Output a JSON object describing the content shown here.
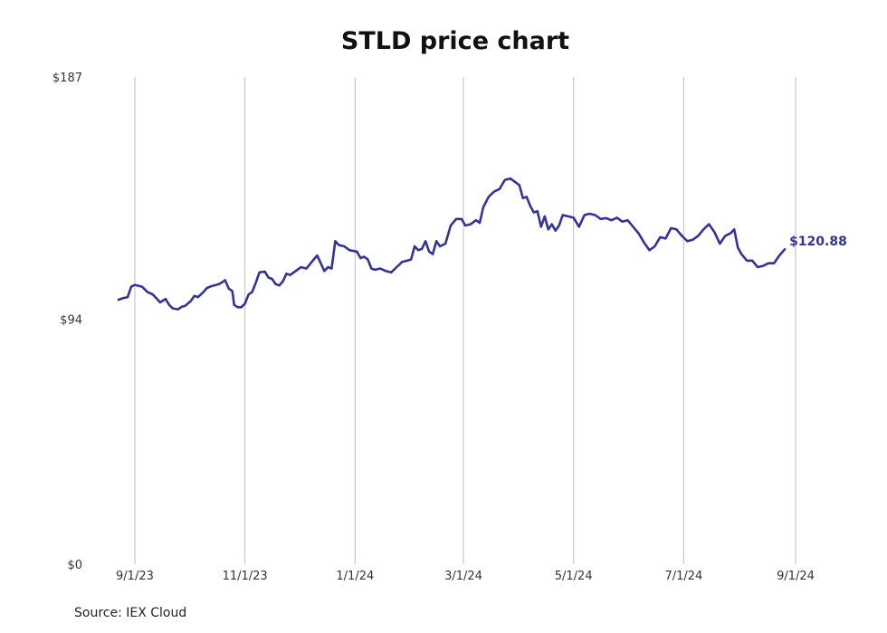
{
  "chart_data": {
    "type": "line",
    "title": "STLD price chart",
    "source": "Source: IEX Cloud",
    "ylim": [
      0,
      187
    ],
    "y_ticks": [
      {
        "value": 0,
        "label": "$0"
      },
      {
        "value": 94,
        "label": "$94"
      },
      {
        "value": 187,
        "label": "$187"
      }
    ],
    "x_range": [
      "2023-08-24",
      "2024-09-08"
    ],
    "x_ticks": [
      {
        "date": "2023-09-01",
        "label": "9/1/23"
      },
      {
        "date": "2023-11-01",
        "label": "11/1/23"
      },
      {
        "date": "2024-01-01",
        "label": "1/1/24"
      },
      {
        "date": "2024-03-01",
        "label": "3/1/24"
      },
      {
        "date": "2024-05-01",
        "label": "5/1/24"
      },
      {
        "date": "2024-07-01",
        "label": "7/1/24"
      },
      {
        "date": "2024-09-01",
        "label": "9/1/24"
      }
    ],
    "grid": "vertical",
    "series": [
      {
        "color": "#333399",
        "last_value_label": "$120.88",
        "points": [
          [
            "2023-08-23",
            101.5
          ],
          [
            "2023-08-25",
            102.0
          ],
          [
            "2023-08-28",
            102.5
          ],
          [
            "2023-08-30",
            106.5
          ],
          [
            "2023-09-01",
            107.2
          ],
          [
            "2023-09-05",
            106.5
          ],
          [
            "2023-09-08",
            104.5
          ],
          [
            "2023-09-11",
            103.5
          ],
          [
            "2023-09-13",
            102.0
          ],
          [
            "2023-09-15",
            100.5
          ],
          [
            "2023-09-18",
            101.8
          ],
          [
            "2023-09-20",
            99.5
          ],
          [
            "2023-09-22",
            98.2
          ],
          [
            "2023-09-25",
            97.8
          ],
          [
            "2023-09-27",
            98.8
          ],
          [
            "2023-09-29",
            99.2
          ],
          [
            "2023-10-02",
            101.0
          ],
          [
            "2023-10-04",
            103.0
          ],
          [
            "2023-10-06",
            102.5
          ],
          [
            "2023-10-09",
            104.5
          ],
          [
            "2023-10-11",
            106.0
          ],
          [
            "2023-10-13",
            106.6
          ],
          [
            "2023-10-16",
            107.2
          ],
          [
            "2023-10-18",
            107.6
          ],
          [
            "2023-10-20",
            108.5
          ],
          [
            "2023-10-21",
            109.0
          ],
          [
            "2023-10-23",
            105.8
          ],
          [
            "2023-10-25",
            104.8
          ],
          [
            "2023-10-26",
            99.5
          ],
          [
            "2023-10-28",
            98.6
          ],
          [
            "2023-10-30",
            98.6
          ],
          [
            "2023-11-01",
            100.0
          ],
          [
            "2023-11-03",
            103.5
          ],
          [
            "2023-11-05",
            104.5
          ],
          [
            "2023-11-07",
            108.0
          ],
          [
            "2023-11-09",
            112.0
          ],
          [
            "2023-11-12",
            112.3
          ],
          [
            "2023-11-14",
            110.0
          ],
          [
            "2023-11-16",
            109.5
          ],
          [
            "2023-11-18",
            107.5
          ],
          [
            "2023-11-20",
            107.0
          ],
          [
            "2023-11-22",
            108.5
          ],
          [
            "2023-11-24",
            111.5
          ],
          [
            "2023-11-26",
            111.0
          ],
          [
            "2023-11-28",
            112.0
          ],
          [
            "2023-11-30",
            113.0
          ],
          [
            "2023-12-02",
            114.0
          ],
          [
            "2023-12-05",
            113.5
          ],
          [
            "2023-12-08",
            116.0
          ],
          [
            "2023-12-11",
            118.5
          ],
          [
            "2023-12-13",
            115.5
          ],
          [
            "2023-12-15",
            112.5
          ],
          [
            "2023-12-17",
            114.0
          ],
          [
            "2023-12-19",
            113.5
          ],
          [
            "2023-12-21",
            124.0
          ],
          [
            "2023-12-23",
            122.5
          ],
          [
            "2023-12-26",
            122.0
          ],
          [
            "2023-12-29",
            120.5
          ],
          [
            "2024-01-02",
            120.0
          ],
          [
            "2024-01-04",
            117.5
          ],
          [
            "2024-01-06",
            118.0
          ],
          [
            "2024-01-08",
            117.0
          ],
          [
            "2024-01-10",
            113.5
          ],
          [
            "2024-01-12",
            113.0
          ],
          [
            "2024-01-15",
            113.5
          ],
          [
            "2024-01-18",
            112.5
          ],
          [
            "2024-01-21",
            112.0
          ],
          [
            "2024-01-24",
            114.0
          ],
          [
            "2024-01-27",
            116.0
          ],
          [
            "2024-01-30",
            116.5
          ],
          [
            "2024-02-01",
            117.0
          ],
          [
            "2024-02-03",
            122.0
          ],
          [
            "2024-02-05",
            120.5
          ],
          [
            "2024-02-07",
            121.0
          ],
          [
            "2024-02-09",
            124.0
          ],
          [
            "2024-02-11",
            120.0
          ],
          [
            "2024-02-13",
            119.0
          ],
          [
            "2024-02-15",
            124.0
          ],
          [
            "2024-02-17",
            122.0
          ],
          [
            "2024-02-20",
            123.0
          ],
          [
            "2024-02-23",
            130.0
          ],
          [
            "2024-02-26",
            132.5
          ],
          [
            "2024-02-29",
            132.5
          ],
          [
            "2024-03-02",
            130.0
          ],
          [
            "2024-03-05",
            130.5
          ],
          [
            "2024-03-08",
            132.0
          ],
          [
            "2024-03-10",
            131.0
          ],
          [
            "2024-03-12",
            137.0
          ],
          [
            "2024-03-15",
            141.0
          ],
          [
            "2024-03-18",
            143.0
          ],
          [
            "2024-03-21",
            144.0
          ],
          [
            "2024-03-24",
            147.5
          ],
          [
            "2024-03-27",
            148.0
          ],
          [
            "2024-03-29",
            147.0
          ],
          [
            "2024-04-01",
            145.5
          ],
          [
            "2024-04-03",
            140.5
          ],
          [
            "2024-04-05",
            141.0
          ],
          [
            "2024-04-07",
            137.5
          ],
          [
            "2024-04-09",
            135.0
          ],
          [
            "2024-04-11",
            135.5
          ],
          [
            "2024-04-13",
            129.5
          ],
          [
            "2024-04-15",
            133.5
          ],
          [
            "2024-04-17",
            128.5
          ],
          [
            "2024-04-19",
            130.5
          ],
          [
            "2024-04-21",
            128.0
          ],
          [
            "2024-04-23",
            130.0
          ],
          [
            "2024-04-25",
            134.0
          ],
          [
            "2024-04-28",
            133.5
          ],
          [
            "2024-05-01",
            133.0
          ],
          [
            "2024-05-04",
            129.5
          ],
          [
            "2024-05-07",
            134.0
          ],
          [
            "2024-05-10",
            134.5
          ],
          [
            "2024-05-13",
            134.0
          ],
          [
            "2024-05-16",
            132.5
          ],
          [
            "2024-05-19",
            132.8
          ],
          [
            "2024-05-22",
            132.0
          ],
          [
            "2024-05-25",
            133.0
          ],
          [
            "2024-05-28",
            131.5
          ],
          [
            "2024-05-31",
            132.0
          ],
          [
            "2024-06-03",
            129.5
          ],
          [
            "2024-06-06",
            127.0
          ],
          [
            "2024-06-09",
            123.5
          ],
          [
            "2024-06-12",
            120.5
          ],
          [
            "2024-06-15",
            122.0
          ],
          [
            "2024-06-18",
            125.5
          ],
          [
            "2024-06-21",
            125.0
          ],
          [
            "2024-06-24",
            129.0
          ],
          [
            "2024-06-27",
            128.5
          ],
          [
            "2024-06-30",
            126.0
          ],
          [
            "2024-07-03",
            124.0
          ],
          [
            "2024-07-06",
            124.5
          ],
          [
            "2024-07-09",
            126.0
          ],
          [
            "2024-07-12",
            128.5
          ],
          [
            "2024-07-15",
            130.5
          ],
          [
            "2024-07-18",
            127.5
          ],
          [
            "2024-07-21",
            123.0
          ],
          [
            "2024-07-24",
            126.0
          ],
          [
            "2024-07-27",
            127.0
          ],
          [
            "2024-07-29",
            128.5
          ],
          [
            "2024-07-31",
            121.5
          ],
          [
            "2024-08-02",
            119.0
          ],
          [
            "2024-08-05",
            116.5
          ],
          [
            "2024-08-08",
            116.5
          ],
          [
            "2024-08-11",
            114.0
          ],
          [
            "2024-08-14",
            114.5
          ],
          [
            "2024-08-17",
            115.5
          ],
          [
            "2024-08-20",
            115.5
          ],
          [
            "2024-08-23",
            118.5
          ],
          [
            "2024-08-26",
            120.9
          ]
        ]
      }
    ]
  }
}
